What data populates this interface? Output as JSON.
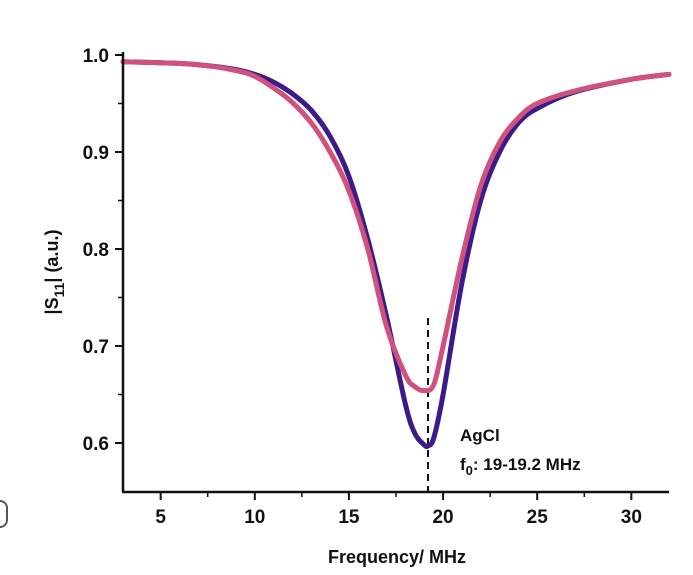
{
  "chart_data": {
    "type": "line",
    "title": "",
    "xlabel": "Frequency/ MHz",
    "ylabel_prefix": "|S",
    "ylabel_sub": "11",
    "ylabel_suffix": "| (a.u.)",
    "xlim": [
      3,
      32
    ],
    "ylim": [
      0.55,
      1.0
    ],
    "xticks": [
      5,
      10,
      15,
      20,
      25,
      30
    ],
    "yticks": [
      0.6,
      0.7,
      0.8,
      0.9,
      1.0
    ],
    "ytick_labels": [
      "0.6",
      "0.7",
      "0.8",
      "0.9",
      "1.0"
    ],
    "grid": false,
    "colors": {
      "series_1": "#3d1a8a",
      "series_2": "#d0507e"
    },
    "series": [
      {
        "x": [
          3,
          5,
          7,
          9,
          10,
          11,
          12,
          13,
          14,
          15,
          16,
          17,
          18,
          18.5,
          19,
          19.2,
          19.5,
          20,
          21,
          22,
          23,
          24,
          25,
          27,
          30,
          32
        ],
        "y": [
          0.993,
          0.992,
          0.99,
          0.985,
          0.98,
          0.972,
          0.96,
          0.943,
          0.916,
          0.875,
          0.81,
          0.73,
          0.64,
          0.61,
          0.598,
          0.597,
          0.605,
          0.65,
          0.765,
          0.85,
          0.9,
          0.93,
          0.945,
          0.962,
          0.975,
          0.98
        ]
      },
      {
        "x": [
          3,
          5,
          7,
          9,
          10,
          11,
          12,
          13,
          14,
          15,
          16,
          17,
          18,
          18.5,
          19,
          19.5,
          20,
          21,
          22,
          23,
          24,
          25,
          27,
          30,
          32
        ],
        "y": [
          0.993,
          0.992,
          0.99,
          0.984,
          0.978,
          0.966,
          0.951,
          0.93,
          0.9,
          0.86,
          0.8,
          0.72,
          0.67,
          0.658,
          0.654,
          0.66,
          0.7,
          0.79,
          0.865,
          0.91,
          0.935,
          0.95,
          0.963,
          0.975,
          0.98
        ]
      }
    ],
    "reference_line": {
      "x": 19.2
    },
    "annotation": {
      "line1": "AgCl",
      "line2_prefix": "f",
      "line2_sub": "0",
      "line2_suffix": ": 19-19.2 MHz"
    }
  }
}
